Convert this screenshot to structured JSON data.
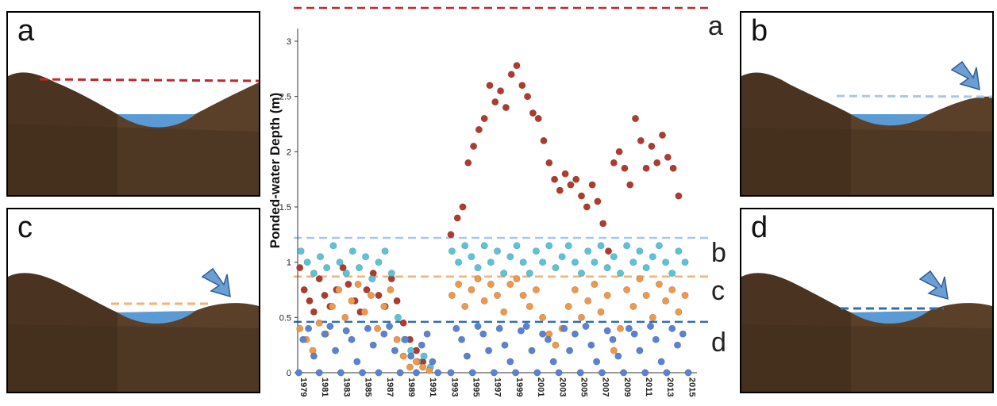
{
  "panels": [
    {
      "letter": "a",
      "line_color": "#c0282b"
    },
    {
      "letter": "b",
      "line_color": "#a9c8e8"
    },
    {
      "letter": "c",
      "line_color": "#f2b27e"
    },
    {
      "letter": "d",
      "line_color": "#2e6fb0"
    }
  ],
  "colors": {
    "rock": "#4a3421",
    "rock_light": "#6b5136",
    "water": "#5a9bd6",
    "arrow": "#6b9fd4",
    "series_a": "#b03a2e",
    "series_b": "#5bc3d8",
    "series_c": "#f0984a",
    "series_d": "#5b82d2"
  },
  "chart_data": {
    "type": "scatter",
    "ylabel": "Ponded-water Depth (m)",
    "ylim": [
      0,
      3
    ],
    "yticks": [
      "0",
      "0.5",
      "1",
      "1.5",
      "2",
      "2.5",
      "3"
    ],
    "xlim": [
      1979,
      2016
    ],
    "xticks": [
      "1979",
      "1981",
      "1983",
      "1985",
      "1987",
      "1989",
      "1991",
      "1993",
      "1995",
      "1997",
      "1999",
      "2001",
      "2003",
      "2005",
      "2007",
      "2009",
      "2011",
      "2013",
      "2015"
    ],
    "thresholds": [
      {
        "label": "a",
        "value": 3.22,
        "color": "#c0282b"
      },
      {
        "label": "b",
        "value": 1.22,
        "color": "#a9c8e8"
      },
      {
        "label": "c",
        "value": 0.87,
        "color": "#f2b27e"
      },
      {
        "label": "d",
        "value": 0.46,
        "color": "#2e6fb0"
      }
    ],
    "series": [
      {
        "label": "a",
        "color": "#b03a2e",
        "points": [
          [
            1979.2,
            0.95
          ],
          [
            1979.6,
            0.75
          ],
          [
            1980.1,
            0.65
          ],
          [
            1980.5,
            0.55
          ],
          [
            1981.0,
            0.85
          ],
          [
            1981.5,
            0.7
          ],
          [
            1982.0,
            0.6
          ],
          [
            1982.6,
            0.75
          ],
          [
            1983.2,
            0.95
          ],
          [
            1983.7,
            0.8
          ],
          [
            1984.3,
            0.65
          ],
          [
            1984.8,
            0.55
          ],
          [
            1985.4,
            0.75
          ],
          [
            1986.0,
            0.9
          ],
          [
            1986.5,
            0.7
          ],
          [
            1987.1,
            0.6
          ],
          [
            1987.7,
            0.85
          ],
          [
            1988.2,
            0.65
          ],
          [
            1988.8,
            0.45
          ],
          [
            1989.4,
            0.3
          ],
          [
            1990.0,
            0.2
          ],
          [
            1990.6,
            0.1
          ],
          [
            1993.2,
            1.25
          ],
          [
            1993.8,
            1.4
          ],
          [
            1994.3,
            1.5
          ],
          [
            1994.8,
            1.9
          ],
          [
            1995.3,
            2.05
          ],
          [
            1995.8,
            2.2
          ],
          [
            1996.3,
            2.3
          ],
          [
            1996.8,
            2.6
          ],
          [
            1997.3,
            2.45
          ],
          [
            1997.8,
            2.55
          ],
          [
            1998.3,
            2.4
          ],
          [
            1998.8,
            2.7
          ],
          [
            1999.3,
            2.78
          ],
          [
            1999.8,
            2.6
          ],
          [
            2000.3,
            2.5
          ],
          [
            2000.8,
            2.35
          ],
          [
            2001.3,
            2.3
          ],
          [
            2001.8,
            2.1
          ],
          [
            2002.3,
            1.9
          ],
          [
            2002.8,
            1.75
          ],
          [
            2003.3,
            1.65
          ],
          [
            2003.8,
            1.8
          ],
          [
            2004.3,
            1.7
          ],
          [
            2004.8,
            1.75
          ],
          [
            2005.3,
            1.6
          ],
          [
            2005.8,
            1.5
          ],
          [
            2006.3,
            1.7
          ],
          [
            2006.8,
            1.55
          ],
          [
            2007.3,
            1.35
          ],
          [
            2007.8,
            1.1
          ],
          [
            2008.3,
            1.9
          ],
          [
            2008.8,
            2.0
          ],
          [
            2009.3,
            1.85
          ],
          [
            2009.8,
            1.7
          ],
          [
            2010.3,
            2.3
          ],
          [
            2010.8,
            2.1
          ],
          [
            2011.3,
            1.85
          ],
          [
            2011.8,
            2.05
          ],
          [
            2012.3,
            1.9
          ],
          [
            2012.8,
            2.15
          ],
          [
            2013.3,
            1.95
          ],
          [
            2013.8,
            1.85
          ],
          [
            2014.3,
            1.6
          ]
        ]
      },
      {
        "label": "b",
        "color": "#5bc3d8",
        "points": [
          [
            1979.3,
            1.1
          ],
          [
            1979.9,
            1.0
          ],
          [
            1980.5,
            0.9
          ],
          [
            1981.1,
            1.05
          ],
          [
            1981.7,
            0.95
          ],
          [
            1982.3,
            1.15
          ],
          [
            1982.9,
            1.0
          ],
          [
            1983.5,
            0.9
          ],
          [
            1984.1,
            1.1
          ],
          [
            1984.7,
            0.95
          ],
          [
            1985.3,
            1.05
          ],
          [
            1985.9,
            0.85
          ],
          [
            1986.5,
            1.0
          ],
          [
            1987.1,
            1.1
          ],
          [
            1987.7,
            0.9
          ],
          [
            1988.3,
            0.5
          ],
          [
            1988.9,
            0.3
          ],
          [
            1989.5,
            0.2
          ],
          [
            1990.1,
            0.1
          ],
          [
            1990.7,
            0.15
          ],
          [
            1991.3,
            0.05
          ],
          [
            1993.3,
            1.1
          ],
          [
            1993.9,
            1.0
          ],
          [
            1994.5,
            1.15
          ],
          [
            1995.1,
            1.05
          ],
          [
            1995.7,
            0.95
          ],
          [
            1996.3,
            1.15
          ],
          [
            1996.9,
            1.0
          ],
          [
            1997.5,
            1.1
          ],
          [
            1998.1,
            0.9
          ],
          [
            1998.7,
            1.05
          ],
          [
            1999.3,
            1.15
          ],
          [
            1999.9,
            1.0
          ],
          [
            2000.5,
            0.9
          ],
          [
            2001.1,
            1.1
          ],
          [
            2001.7,
            1.0
          ],
          [
            2002.3,
            1.15
          ],
          [
            2002.9,
            0.95
          ],
          [
            2003.5,
            1.05
          ],
          [
            2004.1,
            1.15
          ],
          [
            2004.7,
            1.0
          ],
          [
            2005.3,
            0.9
          ],
          [
            2005.9,
            1.1
          ],
          [
            2006.5,
            1.0
          ],
          [
            2007.1,
            1.15
          ],
          [
            2007.7,
            0.95
          ],
          [
            2008.3,
            1.05
          ],
          [
            2008.9,
            0.9
          ],
          [
            2009.5,
            1.15
          ],
          [
            2010.1,
            1.0
          ],
          [
            2010.7,
            1.1
          ],
          [
            2011.3,
            0.95
          ],
          [
            2011.9,
            1.05
          ],
          [
            2012.5,
            1.15
          ],
          [
            2013.1,
            1.0
          ],
          [
            2013.7,
            0.9
          ],
          [
            2014.3,
            1.1
          ],
          [
            2014.9,
            1.0
          ]
        ]
      },
      {
        "label": "c",
        "color": "#f0984a",
        "points": [
          [
            1979.2,
            0.4
          ],
          [
            1979.8,
            0.3
          ],
          [
            1980.4,
            0.2
          ],
          [
            1981.0,
            0.45
          ],
          [
            1981.6,
            0.35
          ],
          [
            1982.2,
            0.6
          ],
          [
            1982.8,
            0.75
          ],
          [
            1983.4,
            0.5
          ],
          [
            1984.0,
            0.65
          ],
          [
            1984.6,
            0.8
          ],
          [
            1985.2,
            0.55
          ],
          [
            1985.8,
            0.7
          ],
          [
            1986.4,
            0.4
          ],
          [
            1987.0,
            0.6
          ],
          [
            1987.6,
            0.75
          ],
          [
            1988.2,
            0.3
          ],
          [
            1988.8,
            0.15
          ],
          [
            1989.4,
            0.05
          ],
          [
            1990.0,
            0.1
          ],
          [
            1990.6,
            0.05
          ],
          [
            1991.2,
            0.02
          ],
          [
            1993.3,
            0.7
          ],
          [
            1993.9,
            0.8
          ],
          [
            1994.5,
            0.6
          ],
          [
            1995.1,
            0.75
          ],
          [
            1995.7,
            0.85
          ],
          [
            1996.3,
            0.65
          ],
          [
            1996.9,
            0.8
          ],
          [
            1997.5,
            0.7
          ],
          [
            1998.1,
            0.55
          ],
          [
            1998.7,
            0.8
          ],
          [
            1999.3,
            0.85
          ],
          [
            1999.9,
            0.7
          ],
          [
            2000.5,
            0.6
          ],
          [
            2001.1,
            0.75
          ],
          [
            2001.7,
            0.5
          ],
          [
            2002.3,
            0.35
          ],
          [
            2002.9,
            0.25
          ],
          [
            2003.5,
            0.4
          ],
          [
            2004.1,
            0.6
          ],
          [
            2004.7,
            0.75
          ],
          [
            2005.3,
            0.5
          ],
          [
            2005.9,
            0.65
          ],
          [
            2006.5,
            0.8
          ],
          [
            2007.1,
            0.55
          ],
          [
            2007.7,
            0.7
          ],
          [
            2008.3,
            0.2
          ],
          [
            2008.9,
            0.4
          ],
          [
            2009.5,
            0.75
          ],
          [
            2010.1,
            0.6
          ],
          [
            2010.7,
            0.85
          ],
          [
            2011.3,
            0.7
          ],
          [
            2011.9,
            0.5
          ],
          [
            2012.5,
            0.8
          ],
          [
            2013.1,
            0.65
          ],
          [
            2013.7,
            0.75
          ],
          [
            2014.3,
            0.55
          ],
          [
            2014.9,
            0.7
          ]
        ]
      },
      {
        "label": "d",
        "color": "#5b82d2",
        "points": [
          [
            1979.1,
            0.0
          ],
          [
            1979.5,
            0.3
          ],
          [
            1980.0,
            0.4
          ],
          [
            1980.5,
            0.15
          ],
          [
            1981.0,
            0.0
          ],
          [
            1981.5,
            0.35
          ],
          [
            1982.0,
            0.42
          ],
          [
            1982.5,
            0.2
          ],
          [
            1983.0,
            0.0
          ],
          [
            1983.5,
            0.38
          ],
          [
            1984.0,
            0.3
          ],
          [
            1984.5,
            0.1
          ],
          [
            1985.0,
            0.0
          ],
          [
            1985.5,
            0.4
          ],
          [
            1986.0,
            0.25
          ],
          [
            1986.5,
            0.0
          ],
          [
            1987.0,
            0.35
          ],
          [
            1987.5,
            0.42
          ],
          [
            1988.0,
            0.2
          ],
          [
            1988.5,
            0.0
          ],
          [
            1989.0,
            0.3
          ],
          [
            1989.5,
            0.15
          ],
          [
            1990.0,
            0.0
          ],
          [
            1990.5,
            0.25
          ],
          [
            1991.0,
            0.35
          ],
          [
            1991.5,
            0.1
          ],
          [
            1992.0,
            0.0
          ],
          [
            1993.2,
            0.0
          ],
          [
            1993.7,
            0.4
          ],
          [
            1994.2,
            0.3
          ],
          [
            1994.7,
            0.15
          ],
          [
            1995.2,
            0.0
          ],
          [
            1995.7,
            0.42
          ],
          [
            1996.2,
            0.35
          ],
          [
            1996.7,
            0.2
          ],
          [
            1997.2,
            0.0
          ],
          [
            1997.7,
            0.4
          ],
          [
            1998.2,
            0.25
          ],
          [
            1998.7,
            0.1
          ],
          [
            1999.2,
            0.0
          ],
          [
            1999.7,
            0.38
          ],
          [
            2000.2,
            0.42
          ],
          [
            2000.7,
            0.2
          ],
          [
            2001.2,
            0.0
          ],
          [
            2001.7,
            0.35
          ],
          [
            2002.2,
            0.3
          ],
          [
            2002.7,
            0.1
          ],
          [
            2003.2,
            0.0
          ],
          [
            2003.7,
            0.4
          ],
          [
            2004.2,
            0.2
          ],
          [
            2004.7,
            0.35
          ],
          [
            2005.2,
            0.0
          ],
          [
            2005.7,
            0.42
          ],
          [
            2006.2,
            0.25
          ],
          [
            2006.7,
            0.1
          ],
          [
            2007.2,
            0.0
          ],
          [
            2007.7,
            0.38
          ],
          [
            2008.2,
            0.3
          ],
          [
            2008.7,
            0.15
          ],
          [
            2009.2,
            0.0
          ],
          [
            2009.7,
            0.4
          ],
          [
            2010.2,
            0.35
          ],
          [
            2010.7,
            0.2
          ],
          [
            2011.2,
            0.0
          ],
          [
            2011.7,
            0.42
          ],
          [
            2012.2,
            0.3
          ],
          [
            2012.7,
            0.1
          ],
          [
            2013.2,
            0.0
          ],
          [
            2013.7,
            0.4
          ],
          [
            2014.2,
            0.25
          ],
          [
            2014.7,
            0.35
          ],
          [
            2015.2,
            0.0
          ]
        ]
      }
    ]
  }
}
